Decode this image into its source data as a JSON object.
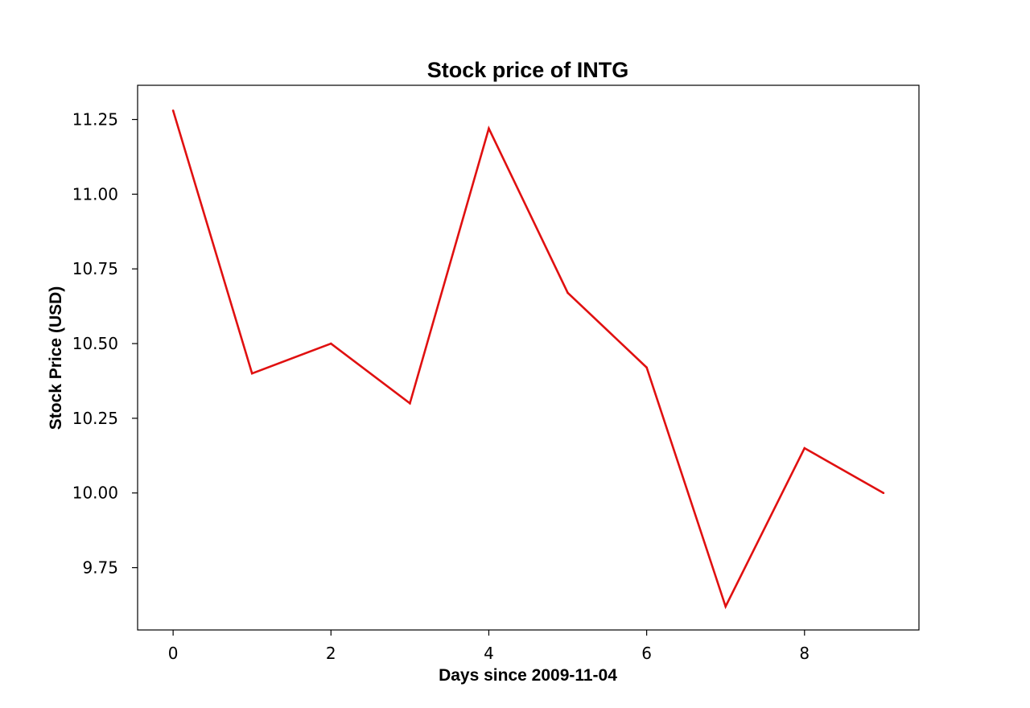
{
  "chart_data": {
    "type": "line",
    "title": "Stock price of INTG",
    "xlabel": "Days since 2009-11-04",
    "ylabel": "Stock Price (USD)",
    "x": [
      0,
      1,
      2,
      3,
      4,
      5,
      6,
      7,
      8,
      9
    ],
    "series": [
      {
        "values": [
          11.28,
          10.4,
          10.5,
          10.3,
          11.22,
          10.67,
          10.42,
          9.62,
          10.15,
          10.0
        ],
        "color": "#e01010"
      }
    ],
    "xticks": [
      0,
      2,
      4,
      6,
      8
    ],
    "xtick_labels": [
      "0",
      "2",
      "4",
      "6",
      "8"
    ],
    "yticks": [
      9.75,
      10.0,
      10.25,
      10.5,
      10.75,
      11.0,
      11.25
    ],
    "ytick_labels": [
      "9.75",
      "10.00",
      "10.25",
      "10.50",
      "10.75",
      "11.00",
      "11.25"
    ],
    "xlim": [
      -0.45,
      9.45
    ],
    "ylim": [
      9.5415,
      11.3645
    ],
    "grid": false,
    "legend": "none"
  }
}
